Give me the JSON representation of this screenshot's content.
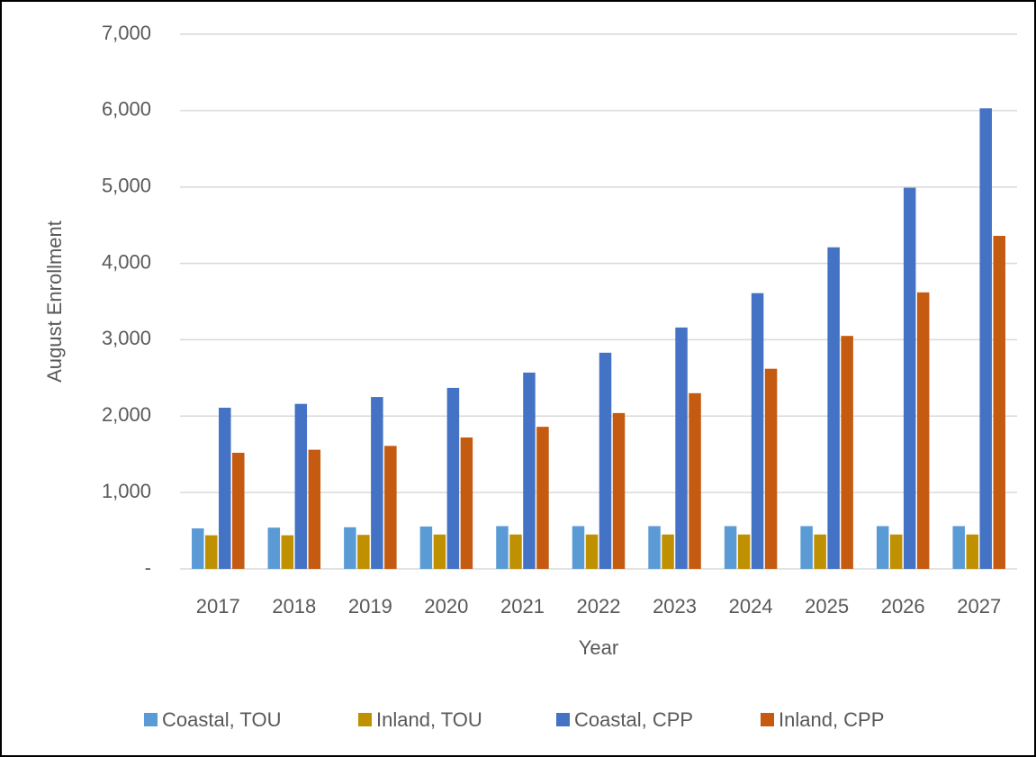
{
  "chart_data": {
    "type": "bar",
    "x_label": "Year",
    "y_label": "August Enrollment",
    "categories": [
      "2017",
      "2018",
      "2019",
      "2020",
      "2021",
      "2022",
      "2023",
      "2024",
      "2025",
      "2026",
      "2027"
    ],
    "series": [
      {
        "name": "Coastal, TOU",
        "color": "#5b9bd5",
        "values": [
          530,
          540,
          545,
          555,
          560,
          560,
          560,
          560,
          560,
          560,
          560
        ]
      },
      {
        "name": "Inland, TOU",
        "color": "#bf9000",
        "values": [
          440,
          440,
          445,
          450,
          450,
          450,
          450,
          450,
          450,
          450,
          450
        ]
      },
      {
        "name": "Coastal, CPP",
        "color": "#4472c4",
        "values": [
          2110,
          2160,
          2250,
          2370,
          2570,
          2830,
          3160,
          3610,
          4210,
          4990,
          6030
        ]
      },
      {
        "name": "Inland, CPP",
        "color": "#c55a11",
        "values": [
          1520,
          1560,
          1610,
          1720,
          1860,
          2040,
          2300,
          2620,
          3050,
          3620,
          4360
        ]
      }
    ],
    "ylim": [
      0,
      7000
    ],
    "yticks": [
      {
        "value": 0,
        "label": "-"
      },
      {
        "value": 1000,
        "label": "1,000"
      },
      {
        "value": 2000,
        "label": "2,000"
      },
      {
        "value": 3000,
        "label": "3,000"
      },
      {
        "value": 4000,
        "label": "4,000"
      },
      {
        "value": 5000,
        "label": "5,000"
      },
      {
        "value": 6000,
        "label": "6,000"
      },
      {
        "value": 7000,
        "label": "7,000"
      }
    ],
    "grid": true,
    "legend": "bottom"
  }
}
